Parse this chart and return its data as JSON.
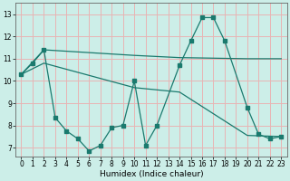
{
  "xlabel": "Humidex (Indice chaleur)",
  "bg_color": "#cceee8",
  "grid_color": "#e8b4b4",
  "line_color": "#1a7a6e",
  "xlim": [
    -0.5,
    23.5
  ],
  "ylim": [
    6.6,
    13.5
  ],
  "xticks": [
    0,
    1,
    2,
    3,
    4,
    5,
    6,
    7,
    8,
    9,
    10,
    11,
    12,
    13,
    14,
    15,
    16,
    17,
    18,
    19,
    20,
    21,
    22,
    23
  ],
  "yticks": [
    7,
    8,
    9,
    10,
    11,
    12,
    13
  ],
  "line_zigzag_x": [
    0,
    1,
    2,
    3,
    4,
    5,
    6,
    7,
    8,
    9,
    10,
    11,
    12,
    14,
    15,
    16,
    17,
    18,
    20,
    21,
    22,
    23
  ],
  "line_zigzag_y": [
    10.3,
    10.8,
    11.4,
    8.35,
    7.75,
    7.4,
    6.85,
    7.1,
    7.9,
    8.0,
    10.0,
    7.1,
    8.0,
    10.7,
    11.8,
    12.85,
    12.85,
    11.8,
    8.8,
    7.6,
    7.4,
    7.5
  ],
  "line_upper_x": [
    0,
    2,
    10,
    14,
    20,
    23
  ],
  "line_upper_y": [
    10.3,
    11.4,
    11.15,
    11.05,
    11.0,
    11.0
  ],
  "line_lower_x": [
    0,
    2,
    10,
    14,
    20,
    23
  ],
  "line_lower_y": [
    10.3,
    10.8,
    9.7,
    9.5,
    7.55,
    7.5
  ]
}
